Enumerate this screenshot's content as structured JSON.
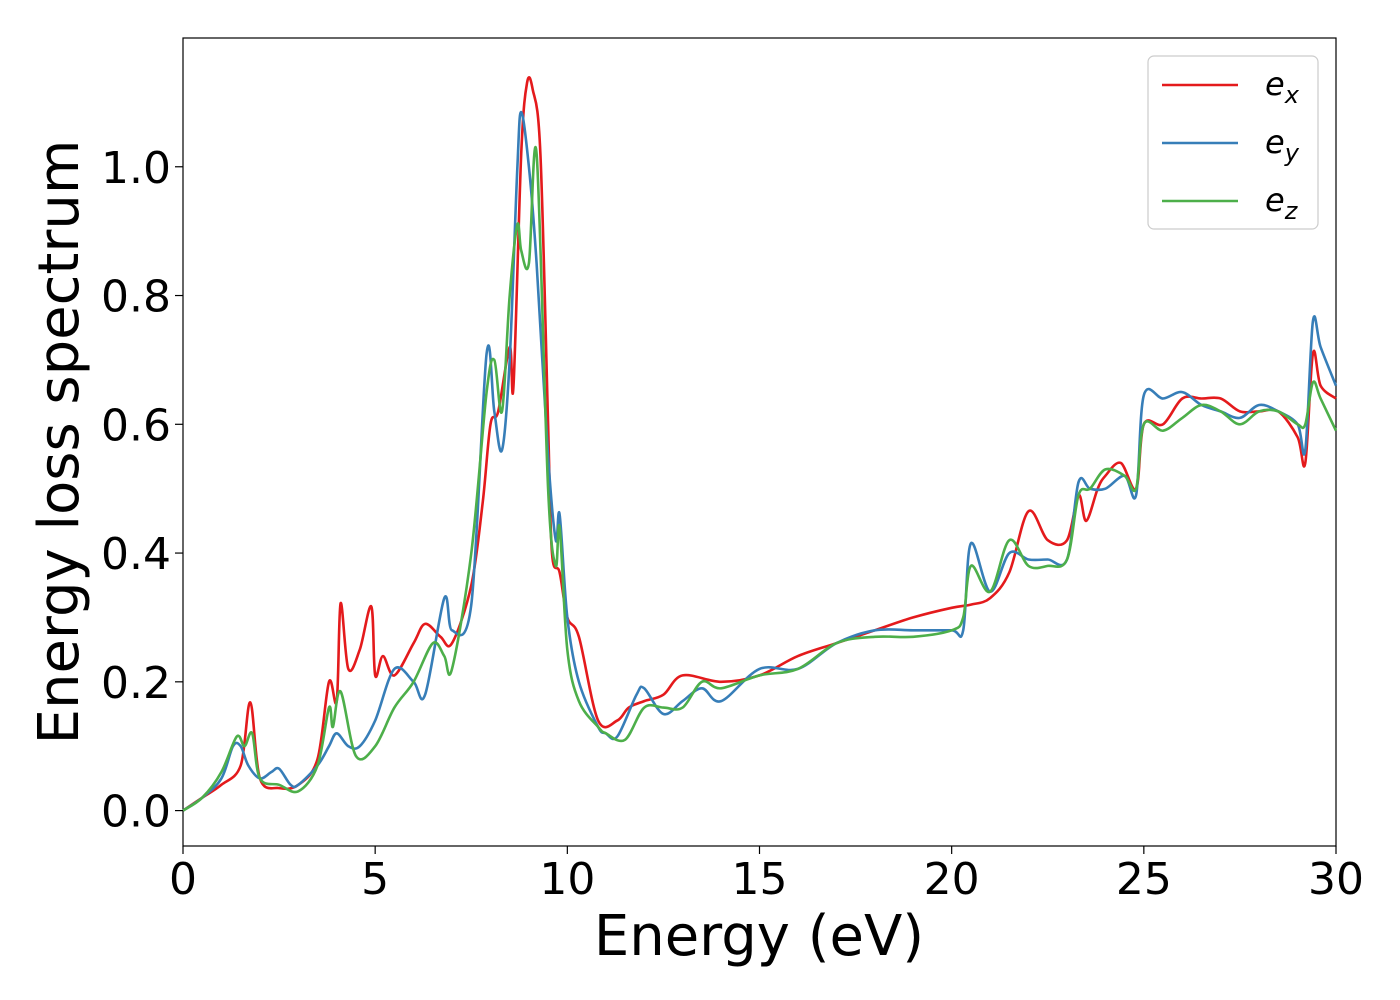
{
  "chart_data": {
    "type": "line",
    "xlabel": "Energy (eV)",
    "ylabel": "Energy loss spectrum",
    "xlim": [
      0,
      30
    ],
    "ylim": [
      -0.055,
      1.2
    ],
    "xticks": [
      0,
      5,
      10,
      15,
      20,
      25,
      30
    ],
    "xtick_labels": [
      "0",
      "5",
      "10",
      "15",
      "20",
      "25",
      "30"
    ],
    "yticks": [
      0.0,
      0.2,
      0.4,
      0.6,
      0.8,
      1.0
    ],
    "ytick_labels": [
      "0.0",
      "0.2",
      "0.4",
      "0.6",
      "0.8",
      "1.0"
    ],
    "grid": false,
    "legend_position": "top-right",
    "series": [
      {
        "name": "e_x",
        "label_base": "e",
        "label_sub": "x",
        "color": "#e41a1c",
        "x": [
          0,
          0.5,
          1.0,
          1.5,
          1.75,
          2.0,
          2.5,
          3.0,
          3.5,
          3.8,
          4.0,
          4.1,
          4.3,
          4.6,
          4.9,
          5.0,
          5.2,
          5.5,
          6.0,
          6.3,
          6.7,
          7.0,
          7.5,
          7.8,
          8.0,
          8.2,
          8.5,
          8.6,
          8.8,
          8.95,
          9.1,
          9.3,
          9.5,
          9.6,
          9.8,
          10.0,
          10.3,
          10.8,
          11.3,
          11.6,
          12.0,
          12.5,
          13.0,
          14.0,
          15.0,
          16.0,
          17.0,
          18.0,
          19.0,
          20.0,
          20.5,
          21.0,
          21.5,
          22.0,
          22.5,
          23.0,
          23.3,
          23.5,
          23.8,
          24.0,
          24.4,
          24.8,
          25.0,
          25.5,
          26.0,
          26.5,
          27.0,
          27.5,
          28.0,
          28.5,
          29.0,
          29.2,
          29.4,
          29.6,
          30.0
        ],
        "y": [
          0,
          0.02,
          0.04,
          0.07,
          0.168,
          0.05,
          0.035,
          0.04,
          0.08,
          0.2,
          0.17,
          0.322,
          0.22,
          0.25,
          0.317,
          0.21,
          0.24,
          0.21,
          0.26,
          0.29,
          0.27,
          0.26,
          0.35,
          0.48,
          0.6,
          0.62,
          0.72,
          0.66,
          1.02,
          1.13,
          1.12,
          1.02,
          0.6,
          0.4,
          0.37,
          0.3,
          0.27,
          0.14,
          0.14,
          0.16,
          0.17,
          0.18,
          0.21,
          0.2,
          0.21,
          0.24,
          0.26,
          0.28,
          0.3,
          0.315,
          0.32,
          0.33,
          0.37,
          0.465,
          0.42,
          0.42,
          0.49,
          0.45,
          0.5,
          0.52,
          0.54,
          0.5,
          0.6,
          0.6,
          0.64,
          0.64,
          0.64,
          0.62,
          0.62,
          0.62,
          0.58,
          0.54,
          0.71,
          0.66,
          0.64
        ]
      },
      {
        "name": "e_y",
        "label_base": "e",
        "label_sub": "y",
        "color": "#377eb8",
        "x": [
          0,
          0.5,
          1.0,
          1.3,
          1.5,
          1.7,
          2.0,
          2.3,
          2.5,
          2.8,
          3.0,
          3.5,
          3.8,
          4.0,
          4.3,
          4.6,
          5.0,
          5.5,
          6.0,
          6.3,
          6.8,
          7.0,
          7.5,
          7.9,
          8.1,
          8.3,
          8.5,
          8.7,
          8.8,
          9.0,
          9.2,
          9.5,
          9.7,
          9.8,
          10.0,
          10.3,
          10.8,
          11.0,
          11.3,
          11.8,
          12.0,
          12.5,
          13.0,
          13.5,
          14.0,
          15.0,
          16.0,
          17.0,
          18.0,
          19.0,
          20.0,
          20.3,
          20.5,
          21.0,
          21.5,
          22.0,
          22.5,
          23.0,
          23.3,
          23.6,
          24.0,
          24.5,
          24.8,
          25.0,
          25.5,
          26.0,
          26.5,
          27.0,
          27.5,
          28.0,
          28.5,
          29.0,
          29.2,
          29.4,
          29.6,
          30.0
        ],
        "y": [
          0,
          0.02,
          0.05,
          0.1,
          0.1,
          0.07,
          0.05,
          0.06,
          0.065,
          0.04,
          0.04,
          0.07,
          0.1,
          0.12,
          0.1,
          0.1,
          0.14,
          0.22,
          0.2,
          0.18,
          0.33,
          0.28,
          0.32,
          0.71,
          0.62,
          0.56,
          0.7,
          1.0,
          1.085,
          1.0,
          0.85,
          0.55,
          0.42,
          0.46,
          0.3,
          0.2,
          0.13,
          0.12,
          0.115,
          0.18,
          0.19,
          0.15,
          0.17,
          0.19,
          0.17,
          0.22,
          0.22,
          0.26,
          0.28,
          0.28,
          0.28,
          0.28,
          0.415,
          0.34,
          0.4,
          0.39,
          0.39,
          0.39,
          0.51,
          0.5,
          0.5,
          0.52,
          0.49,
          0.645,
          0.64,
          0.65,
          0.63,
          0.62,
          0.61,
          0.63,
          0.62,
          0.6,
          0.56,
          0.76,
          0.72,
          0.66
        ]
      },
      {
        "name": "e_z",
        "label_base": "e",
        "label_sub": "z",
        "color": "#4daf4a",
        "x": [
          0,
          0.5,
          1.0,
          1.4,
          1.6,
          1.8,
          2.0,
          2.5,
          3.0,
          3.5,
          3.8,
          3.9,
          4.1,
          4.5,
          5.0,
          5.5,
          6.0,
          6.5,
          6.8,
          7.0,
          7.5,
          7.9,
          8.1,
          8.3,
          8.5,
          8.7,
          8.8,
          9.0,
          9.2,
          9.5,
          9.7,
          9.8,
          10.0,
          10.3,
          10.8,
          11.0,
          11.5,
          12.0,
          12.5,
          13.0,
          13.5,
          14.0,
          15.0,
          16.0,
          17.0,
          18.0,
          19.0,
          20.0,
          20.3,
          20.5,
          21.0,
          21.5,
          22.0,
          22.5,
          23.0,
          23.3,
          23.6,
          24.0,
          24.5,
          24.8,
          25.0,
          25.5,
          26.0,
          26.5,
          27.0,
          27.5,
          28.0,
          28.5,
          29.0,
          29.2,
          29.4,
          29.6,
          30.0
        ],
        "y": [
          0,
          0.02,
          0.06,
          0.115,
          0.1,
          0.12,
          0.05,
          0.04,
          0.03,
          0.07,
          0.16,
          0.13,
          0.185,
          0.085,
          0.1,
          0.16,
          0.2,
          0.26,
          0.24,
          0.22,
          0.4,
          0.65,
          0.7,
          0.62,
          0.8,
          0.91,
          0.87,
          0.85,
          1.02,
          0.5,
          0.38,
          0.44,
          0.25,
          0.17,
          0.13,
          0.12,
          0.11,
          0.16,
          0.16,
          0.16,
          0.2,
          0.19,
          0.21,
          0.22,
          0.26,
          0.27,
          0.27,
          0.28,
          0.3,
          0.38,
          0.34,
          0.42,
          0.38,
          0.38,
          0.39,
          0.49,
          0.5,
          0.53,
          0.52,
          0.5,
          0.6,
          0.59,
          0.61,
          0.63,
          0.62,
          0.6,
          0.62,
          0.62,
          0.6,
          0.6,
          0.665,
          0.64,
          0.59
        ]
      }
    ]
  }
}
